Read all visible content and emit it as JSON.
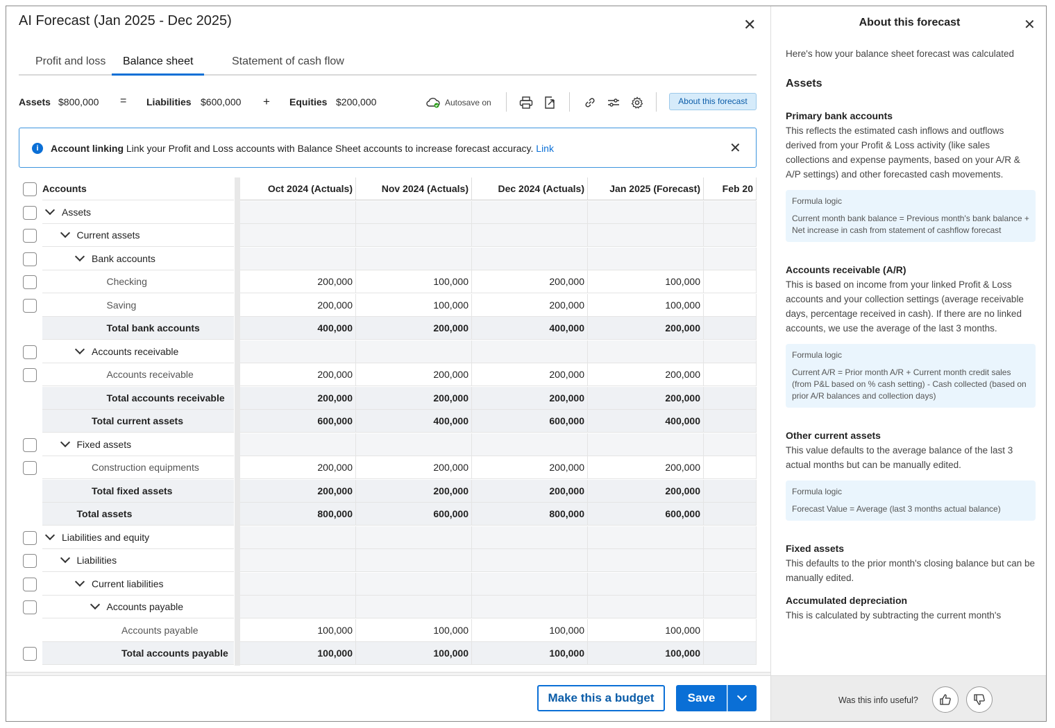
{
  "title": "AI Forecast (Jan 2025 - Dec 2025)",
  "tabs": [
    {
      "label": "Profit and loss",
      "active": false
    },
    {
      "label": "Balance sheet",
      "active": true
    },
    {
      "label": "Statement of cash flow",
      "active": false
    }
  ],
  "equation": {
    "assets_label": "Assets",
    "assets_value": "$800,000",
    "equals": "=",
    "liabilities_label": "Liabilities",
    "liabilities_value": "$600,000",
    "plus": "+",
    "equities_label": "Equities",
    "equities_value": "$200,000"
  },
  "toolbar": {
    "autosave": "Autosave on",
    "about_button": "About this forecast",
    "icons": [
      "cloud-check-icon",
      "print-icon",
      "export-icon",
      "link-icon",
      "filter-icon",
      "gear-icon"
    ]
  },
  "banner": {
    "title": "Account linking",
    "text": "Link your Profit and Loss accounts with Balance Sheet accounts to increase forecast accuracy.",
    "link": "Link"
  },
  "table": {
    "headers": [
      "Accounts",
      "Oct 2024 (Actuals)",
      "Nov 2024 (Actuals)",
      "Dec 2024 (Actuals)",
      "Jan 2025 (Forecast)",
      "Feb 20"
    ],
    "rows": [
      {
        "label": "Assets",
        "level": 0,
        "type": "group",
        "checkbox": true,
        "values": [
          "",
          "",
          "",
          ""
        ]
      },
      {
        "label": "Current assets",
        "level": 1,
        "type": "group",
        "checkbox": true,
        "values": [
          "",
          "",
          "",
          ""
        ]
      },
      {
        "label": "Bank accounts",
        "level": 2,
        "type": "group",
        "checkbox": true,
        "values": [
          "",
          "",
          "",
          ""
        ]
      },
      {
        "label": "Checking",
        "level": 3,
        "type": "normal",
        "checkbox": true,
        "values": [
          "200,000",
          "100,000",
          "200,000",
          "100,000"
        ]
      },
      {
        "label": "Saving",
        "level": 3,
        "type": "normal",
        "checkbox": true,
        "values": [
          "200,000",
          "100,000",
          "200,000",
          "100,000"
        ]
      },
      {
        "label": "Total bank accounts",
        "level": 3,
        "type": "total",
        "checkbox": false,
        "values": [
          "400,000",
          "200,000",
          "400,000",
          "200,000"
        ]
      },
      {
        "label": "Accounts receivable",
        "level": 2,
        "type": "group",
        "checkbox": true,
        "values": [
          "",
          "",
          "",
          ""
        ]
      },
      {
        "label": "Accounts receivable",
        "level": 3,
        "type": "normal",
        "checkbox": true,
        "values": [
          "200,000",
          "200,000",
          "200,000",
          "200,000"
        ]
      },
      {
        "label": "Total accounts receivable",
        "level": 3,
        "type": "total",
        "checkbox": false,
        "values": [
          "200,000",
          "200,000",
          "200,000",
          "200,000"
        ]
      },
      {
        "label": "Total current assets",
        "level": 2,
        "type": "total",
        "checkbox": false,
        "values": [
          "600,000",
          "400,000",
          "600,000",
          "400,000"
        ]
      },
      {
        "label": "Fixed assets",
        "level": 1,
        "type": "group",
        "checkbox": true,
        "values": [
          "",
          "",
          "",
          ""
        ]
      },
      {
        "label": "Construction equipments",
        "level": 2,
        "type": "normal",
        "checkbox": true,
        "values": [
          "200,000",
          "200,000",
          "200,000",
          "200,000"
        ]
      },
      {
        "label": "Total fixed assets",
        "level": 2,
        "type": "total",
        "checkbox": false,
        "values": [
          "200,000",
          "200,000",
          "200,000",
          "200,000"
        ]
      },
      {
        "label": "Total assets",
        "level": 1,
        "type": "total",
        "checkbox": false,
        "values": [
          "800,000",
          "600,000",
          "800,000",
          "600,000"
        ]
      },
      {
        "label": "Liabilities and equity",
        "level": 0,
        "type": "group",
        "checkbox": true,
        "values": [
          "",
          "",
          "",
          ""
        ]
      },
      {
        "label": "Liabilities",
        "level": 1,
        "type": "group",
        "checkbox": true,
        "values": [
          "",
          "",
          "",
          ""
        ]
      },
      {
        "label": "Current liabilities",
        "level": 2,
        "type": "group",
        "checkbox": true,
        "values": [
          "",
          "",
          "",
          ""
        ]
      },
      {
        "label": "Accounts payable",
        "level": 3,
        "type": "group",
        "checkbox": true,
        "values": [
          "",
          "",
          "",
          ""
        ]
      },
      {
        "label": "Accounts payable",
        "level": 4,
        "type": "normal",
        "checkbox": false,
        "values": [
          "100,000",
          "100,000",
          "100,000",
          "100,000"
        ]
      },
      {
        "label": "Total accounts payable",
        "level": 4,
        "type": "total",
        "checkbox": true,
        "values": [
          "100,000",
          "100,000",
          "100,000",
          "100,000"
        ]
      }
    ]
  },
  "footer": {
    "budget_button": "Make this a budget",
    "save_button": "Save"
  },
  "sidepanel": {
    "title": "About this forecast",
    "intro": "Here's how your balance sheet forecast was calculated",
    "section": "Assets",
    "items": [
      {
        "heading": "Primary bank accounts",
        "text": "This reflects the estimated cash inflows and outflows derived from your Profit & Loss activity (like sales collections and expense payments, based on your A/R & A/P settings) and other forecasted cash movements.",
        "formula_label": "Formula logic",
        "formula": "Current month bank balance = Previous month's bank balance + Net increase in cash from statement of cashflow forecast"
      },
      {
        "heading": "Accounts receivable (A/R)",
        "text": "This is based on income from your linked Profit & Loss accounts and your collection settings (average receivable days, percentage received in cash). If there are no linked accounts, we use the average of the last 3 months.",
        "formula_label": "Formula logic",
        "formula": "Current A/R = Prior month A/R + Current month credit sales (from P&L based on % cash setting) - Cash collected (based on prior A/R balances and collection days)"
      },
      {
        "heading": "Other current assets",
        "text": "This value defaults to the average balance of the last 3 actual months but can be manually edited.",
        "formula_label": "Formula logic",
        "formula": "Forecast Value = Average (last 3 months actual balance)"
      },
      {
        "heading": "Fixed assets",
        "text": "This defaults to the prior month's closing balance but can be manually edited.",
        "formula_label": "",
        "formula": ""
      },
      {
        "heading": "Accumulated depreciation",
        "text": "This is calculated by subtracting the current month's",
        "formula_label": "",
        "formula": ""
      }
    ],
    "feedback_question": "Was this info useful?"
  }
}
